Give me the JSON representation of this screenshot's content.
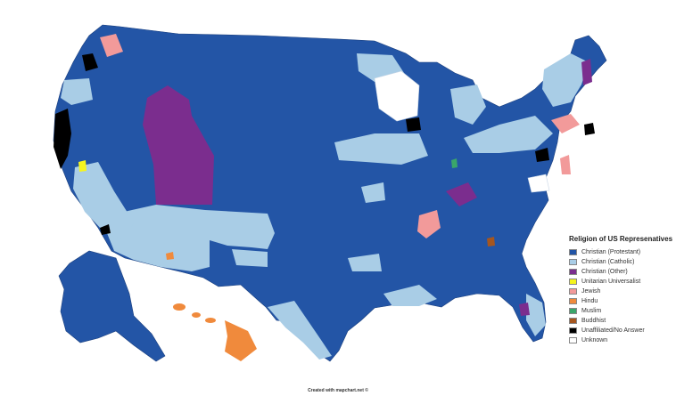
{
  "legend": {
    "title": "Religion of US Represenatives",
    "items": [
      {
        "label": "Christian (Protestant)",
        "color": "#2355a6"
      },
      {
        "label": "Christian (Catholic)",
        "color": "#a9cde6"
      },
      {
        "label": "Christian (Other)",
        "color": "#7b2d8e"
      },
      {
        "label": "Unitarian Universalist",
        "color": "#f5f51e"
      },
      {
        "label": "Jewish",
        "color": "#f29a9a"
      },
      {
        "label": "Hindu",
        "color": "#f08a3c"
      },
      {
        "label": "Muslim",
        "color": "#3aa66a"
      },
      {
        "label": "Buddhist",
        "color": "#a5561f"
      },
      {
        "label": "Unaffiliated/No Answer",
        "color": "#000000"
      },
      {
        "label": "Unknown",
        "color": "#ffffff"
      }
    ]
  },
  "credit": "Created with mapchart.net ©",
  "regions": {
    "mainland": "Christian (Protestant)",
    "alaska": "Christian (Protestant)",
    "hawaii": "Hindu",
    "utah_wyoming": "Christian (Other)",
    "nw_california_coast": "Unaffiliated/No Answer",
    "seattle": "Unaffiliated/No Answer",
    "chicago": "Unaffiliated/No Answer",
    "northern_mississippi": "Jewish",
    "wisconsin_north": "Unknown",
    "new_mexico": "Christian (Catholic)"
  }
}
